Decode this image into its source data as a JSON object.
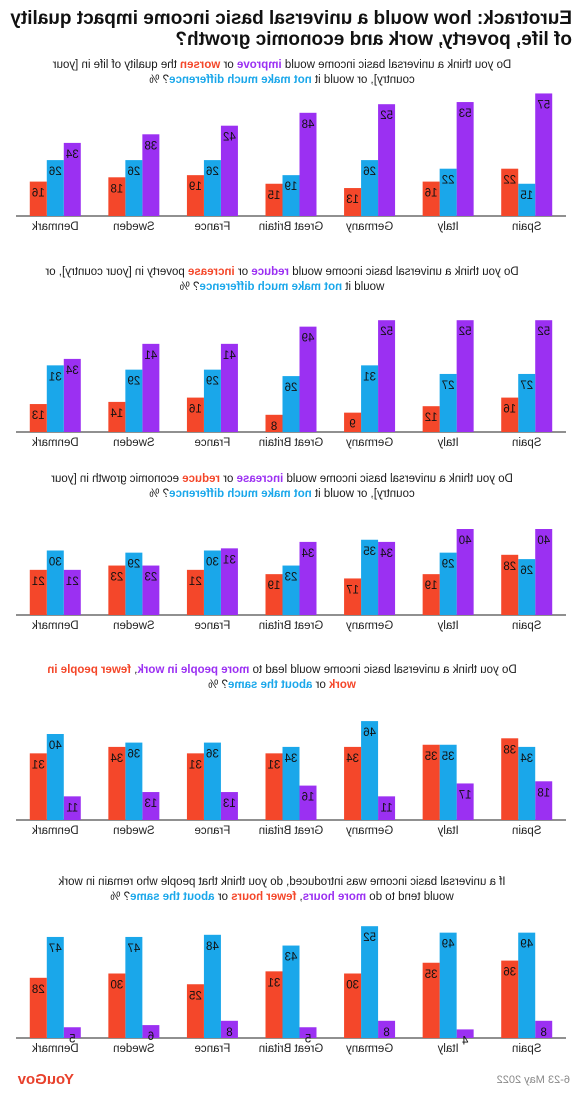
{
  "title": "Eurotrack: how would a universal basic income impact quality of life, poverty, work and economic growth?",
  "footer": {
    "date": "6-23 May 2022",
    "brand": "YouGov"
  },
  "colors": {
    "red": "#f4472a",
    "blue": "#1aa7ea",
    "purple": "#9b30f2"
  },
  "chart_data": [
    {
      "type": "bar",
      "question_parts": [
        {
          "text": "Do you think a universal basic income would ",
          "color": "dark"
        },
        {
          "text": "improve",
          "color": "purple"
        },
        {
          "text": " or ",
          "color": "dark"
        },
        {
          "text": "worsen",
          "color": "red"
        },
        {
          "text": " the quality of life in [your country], or would it ",
          "color": "dark"
        },
        {
          "text": "not make much difference",
          "color": "blue"
        },
        {
          "text": "? %",
          "color": "dark"
        }
      ],
      "categories": [
        "Spain",
        "Italy",
        "Germany",
        "Great Britain",
        "France",
        "Sweden",
        "Denmark"
      ],
      "series": [
        {
          "color": "purple",
          "values": [
            57,
            53,
            52,
            48,
            42,
            38,
            34
          ]
        },
        {
          "color": "blue",
          "values": [
            15,
            22,
            26,
            19,
            26,
            26,
            26
          ]
        },
        {
          "color": "red",
          "values": [
            22,
            16,
            13,
            15,
            19,
            18,
            16
          ]
        }
      ]
    },
    {
      "type": "bar",
      "question_parts": [
        {
          "text": "Do you think a universal basic income would ",
          "color": "dark"
        },
        {
          "text": "reduce",
          "color": "purple"
        },
        {
          "text": " or ",
          "color": "dark"
        },
        {
          "text": "increase",
          "color": "red"
        },
        {
          "text": " poverty in [your country], or would it ",
          "color": "dark"
        },
        {
          "text": "not make much difference",
          "color": "blue"
        },
        {
          "text": "? %",
          "color": "dark"
        }
      ],
      "categories": [
        "Spain",
        "Italy",
        "Germany",
        "Great Britain",
        "France",
        "Sweden",
        "Denmark"
      ],
      "series": [
        {
          "color": "purple",
          "values": [
            52,
            52,
            52,
            49,
            41,
            41,
            34
          ]
        },
        {
          "color": "blue",
          "values": [
            27,
            27,
            31,
            26,
            29,
            29,
            31
          ]
        },
        {
          "color": "red",
          "values": [
            16,
            12,
            9,
            8,
            16,
            14,
            13
          ]
        }
      ]
    },
    {
      "type": "bar",
      "question_parts": [
        {
          "text": "Do you think a universal basic income would ",
          "color": "dark"
        },
        {
          "text": "increase",
          "color": "purple"
        },
        {
          "text": " or ",
          "color": "dark"
        },
        {
          "text": "reduce",
          "color": "red"
        },
        {
          "text": " economic growth in [your country], or would it ",
          "color": "dark"
        },
        {
          "text": "not make much difference",
          "color": "blue"
        },
        {
          "text": "? %",
          "color": "dark"
        }
      ],
      "categories": [
        "Spain",
        "Italy",
        "Germany",
        "Great Britain",
        "France",
        "Sweden",
        "Denmark"
      ],
      "series": [
        {
          "color": "purple",
          "values": [
            40,
            40,
            34,
            34,
            31,
            23,
            21
          ]
        },
        {
          "color": "blue",
          "values": [
            26,
            29,
            35,
            23,
            30,
            29,
            30
          ]
        },
        {
          "color": "red",
          "values": [
            28,
            19,
            17,
            19,
            21,
            23,
            21
          ]
        }
      ]
    },
    {
      "type": "bar",
      "question_parts": [
        {
          "text": "Do you think a universal basic income would lead to ",
          "color": "dark"
        },
        {
          "text": "more people in work",
          "color": "purple"
        },
        {
          "text": ", ",
          "color": "dark"
        },
        {
          "text": "fewer people in work",
          "color": "red"
        },
        {
          "text": " or ",
          "color": "dark"
        },
        {
          "text": "about the same",
          "color": "blue"
        },
        {
          "text": "? %",
          "color": "dark"
        }
      ],
      "categories": [
        "Spain",
        "Italy",
        "Germany",
        "Great Britain",
        "France",
        "Sweden",
        "Denmark"
      ],
      "series": [
        {
          "color": "purple",
          "values": [
            18,
            17,
            11,
            16,
            13,
            13,
            11
          ]
        },
        {
          "color": "blue",
          "values": [
            34,
            35,
            46,
            34,
            36,
            36,
            40
          ]
        },
        {
          "color": "red",
          "values": [
            38,
            35,
            34,
            31,
            31,
            34,
            31
          ]
        }
      ]
    },
    {
      "type": "bar",
      "question_parts": [
        {
          "text": "If a universal basic income was introduced, do you think that people who remain in work would tend to do ",
          "color": "dark"
        },
        {
          "text": "more hours",
          "color": "purple"
        },
        {
          "text": ", ",
          "color": "dark"
        },
        {
          "text": "fewer hours",
          "color": "red"
        },
        {
          "text": " or ",
          "color": "dark"
        },
        {
          "text": "about the same",
          "color": "blue"
        },
        {
          "text": "? %",
          "color": "dark"
        }
      ],
      "categories": [
        "Spain",
        "Italy",
        "Germany",
        "Great Britain",
        "France",
        "Sweden",
        "Denmark"
      ],
      "series": [
        {
          "color": "purple",
          "values": [
            8,
            4,
            8,
            5,
            8,
            6,
            5
          ]
        },
        {
          "color": "blue",
          "values": [
            49,
            49,
            52,
            43,
            48,
            47,
            47
          ]
        },
        {
          "color": "red",
          "values": [
            36,
            35,
            30,
            31,
            25,
            30,
            28
          ]
        }
      ]
    }
  ]
}
